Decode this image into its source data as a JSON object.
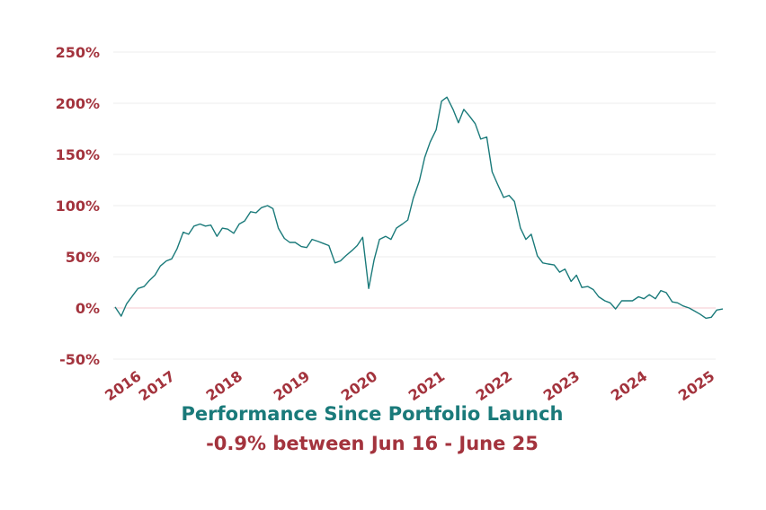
{
  "chart_data": {
    "type": "line",
    "title": "Performance Since Portfolio Launch",
    "subtitle": "-0.9% between Jun 16 - June 25",
    "xlabel": "",
    "ylabel": "",
    "ylim": [
      -50,
      250
    ],
    "yticks": [
      "-50%",
      "0%",
      "50%",
      "100%",
      "150%",
      "200%",
      "250%"
    ],
    "ytick_values": [
      -50,
      0,
      50,
      100,
      150,
      200,
      250
    ],
    "xticks": [
      "2016",
      "2017",
      "2018",
      "2019",
      "2020",
      "2021",
      "2022",
      "2023",
      "2024",
      "2025"
    ],
    "xtick_values": [
      2016.5,
      2017,
      2018,
      2019,
      2020,
      2021,
      2022,
      2023,
      2024,
      2025
    ],
    "grid": true,
    "colors": {
      "line": "#1a7a7a",
      "labels": "#a3333d",
      "title": "#1a7a7a",
      "grid": "#eeeeee",
      "zero_line": "#f4c9cf"
    },
    "series": [
      {
        "x": [
          2016.45,
          2016.54,
          2016.62,
          2016.71,
          2016.79,
          2016.88,
          2016.96,
          2017.04,
          2017.12,
          2017.21,
          2017.29,
          2017.37,
          2017.46,
          2017.54,
          2017.62,
          2017.71,
          2017.79,
          2017.87,
          2017.96,
          2018.04,
          2018.12,
          2018.21,
          2018.29,
          2018.37,
          2018.46,
          2018.54,
          2018.62,
          2018.71,
          2018.79,
          2018.87,
          2018.96,
          2019.04,
          2019.12,
          2019.21,
          2019.29,
          2019.37,
          2019.46,
          2019.54,
          2019.62,
          2019.71,
          2019.79,
          2019.87,
          2019.96,
          2020.04,
          2020.12,
          2020.21,
          2020.29,
          2020.37,
          2020.46,
          2020.54,
          2020.62,
          2020.71,
          2020.79,
          2020.87,
          2020.96,
          2021.04,
          2021.12,
          2021.21,
          2021.29,
          2021.37,
          2021.46,
          2021.54,
          2021.62,
          2021.71,
          2021.79,
          2021.87,
          2021.96,
          2022.04,
          2022.12,
          2022.21,
          2022.29,
          2022.37,
          2022.46,
          2022.54,
          2022.62,
          2022.71,
          2022.79,
          2022.87,
          2022.96,
          2023.04,
          2023.12,
          2023.21,
          2023.29,
          2023.37,
          2023.46,
          2023.54,
          2023.62,
          2023.71,
          2023.79,
          2023.87,
          2023.96,
          2024.04,
          2024.12,
          2024.21,
          2024.29,
          2024.37,
          2024.46,
          2024.54,
          2024.62,
          2024.71,
          2024.79,
          2024.87,
          2024.96,
          2025.04,
          2025.12,
          2025.21,
          2025.29,
          2025.37,
          2025.46
        ],
        "y": [
          1,
          -8,
          4,
          12,
          19,
          21,
          27,
          32,
          41,
          46,
          48,
          58,
          74,
          72,
          80,
          82,
          80,
          81,
          70,
          78,
          77,
          73,
          82,
          85,
          94,
          93,
          98,
          100,
          97,
          78,
          68,
          64,
          64,
          60,
          59,
          67,
          65,
          63,
          61,
          44,
          46,
          51,
          56,
          61,
          69,
          19,
          47,
          67,
          70,
          67,
          78,
          82,
          86,
          107,
          124,
          147,
          162,
          174,
          202,
          206,
          194,
          181,
          194,
          187,
          180,
          165,
          167,
          133,
          121,
          108,
          110,
          104,
          78,
          67,
          72,
          51,
          44,
          43,
          42,
          35,
          38,
          26,
          32,
          20,
          21,
          18,
          11,
          7,
          5,
          -1,
          7,
          7,
          7,
          11,
          9,
          13,
          9,
          17,
          15,
          6,
          5,
          2,
          0,
          -3,
          -6,
          -10,
          -9,
          -2,
          -1
        ]
      }
    ]
  }
}
